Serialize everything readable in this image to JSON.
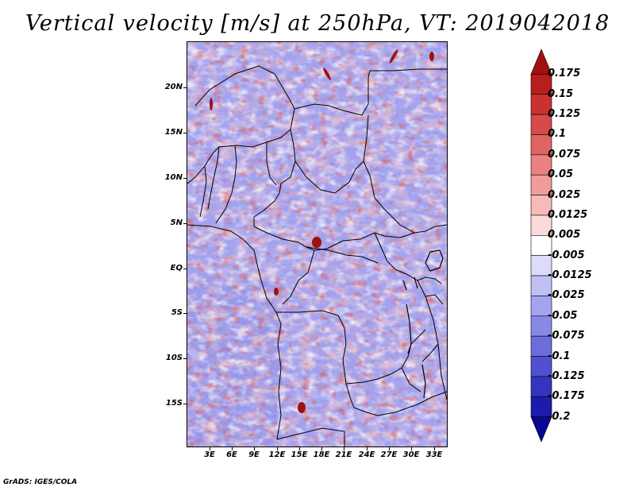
{
  "title": "Vertical velocity [m/s] at 250hPa, VT: 2019042018",
  "credit": "GrADS: IGES/COLA",
  "lat_labels": [
    "20N",
    "15N",
    "10N",
    "5N",
    "EQ",
    "5S",
    "10S",
    "15S"
  ],
  "lon_labels": [
    "3E",
    "6E",
    "9E",
    "12E",
    "15E",
    "18E",
    "21E",
    "24E",
    "27E",
    "30E",
    "33E"
  ],
  "colorbar": {
    "labels": [
      "0.175",
      "0.15",
      "0.125",
      "0.1",
      "0.075",
      "0.05",
      "0.025",
      "0.0125",
      "0.005",
      "-0.005",
      "-0.0125",
      "-0.025",
      "-0.05",
      "-0.075",
      "-0.1",
      "-0.125",
      "-0.175",
      "-0.2"
    ],
    "colors": [
      "#a01010",
      "#b81e1e",
      "#c83232",
      "#d64a4a",
      "#e06464",
      "#ea8080",
      "#f09c9c",
      "#f6baba",
      "#fbdada",
      "#ffffff",
      "#dcdcf8",
      "#c0c0f4",
      "#a4a4ee",
      "#8888e6",
      "#6c6cdc",
      "#5050d0",
      "#3434c0",
      "#1c1cac",
      "#080890"
    ]
  },
  "map": {
    "background_colors": {
      "positive": "#f0a0a0",
      "negative": "#9c9cee",
      "neutral": "#f4f0f8"
    }
  }
}
